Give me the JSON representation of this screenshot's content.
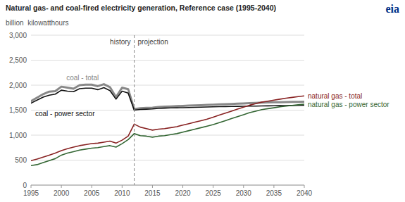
{
  "chart_data": {
    "type": "line",
    "title": "Natural gas- and coal-fired electricity generation, Reference case (1995-2040)",
    "y_label": "billion  kilowatthours",
    "xlim": [
      1995,
      2040
    ],
    "xticks": [
      1995,
      2000,
      2005,
      2010,
      2015,
      2020,
      2025,
      2030,
      2035,
      2040
    ],
    "ylim": [
      0,
      3000
    ],
    "yticks": [
      0,
      500,
      {
        "value": 1000,
        "label": "1,000"
      },
      {
        "value": 1500,
        "label": "1,500"
      },
      {
        "value": 2000,
        "label": "2,000"
      },
      {
        "value": 2500,
        "label": "2,500"
      },
      {
        "value": 3000,
        "label": "3,000"
      }
    ],
    "grid": true,
    "divider": {
      "x": 2012,
      "labels": [
        "history",
        "projection"
      ]
    },
    "logo": {
      "text": "eia",
      "color": "#003087"
    },
    "series": [
      {
        "name": "coal - total",
        "color": "#888888",
        "x": [
          1995,
          1996,
          1997,
          1998,
          1999,
          2000,
          2001,
          2002,
          2003,
          2004,
          2005,
          2006,
          2007,
          2008,
          2009,
          2010,
          2011,
          2012
        ],
        "values": [
          1680,
          1750,
          1820,
          1870,
          1880,
          1970,
          1950,
          1930,
          2000,
          2010,
          2010,
          1980,
          2020,
          1960,
          1760,
          1950,
          1920,
          1520
        ]
      },
      {
        "color": "#888888",
        "x": [
          2012,
          2013,
          2014,
          2015,
          2016,
          2017,
          2018,
          2019,
          2020,
          2021,
          2022,
          2023,
          2024,
          2025,
          2026,
          2027,
          2028,
          2029,
          2030,
          2031,
          2032,
          2033,
          2034,
          2035,
          2036,
          2037,
          2038,
          2039,
          2040
        ],
        "values": [
          1520,
          1540,
          1545,
          1550,
          1565,
          1570,
          1575,
          1580,
          1585,
          1590,
          1595,
          1600,
          1605,
          1610,
          1615,
          1620,
          1625,
          1630,
          1635,
          1640,
          1645,
          1650,
          1655,
          1658,
          1660,
          1662,
          1664,
          1666,
          1668
        ]
      },
      {
        "name": "coal - power sector",
        "color": "#111111",
        "x": [
          1995,
          1996,
          1997,
          1998,
          1999,
          2000,
          2001,
          2002,
          2003,
          2004,
          2005,
          2006,
          2007,
          2008,
          2009,
          2010,
          2011,
          2012
        ],
        "values": [
          1640,
          1700,
          1760,
          1800,
          1820,
          1900,
          1880,
          1870,
          1930,
          1940,
          1940,
          1910,
          1950,
          1890,
          1720,
          1880,
          1840,
          1500
        ]
      },
      {
        "color": "#111111",
        "x": [
          2012,
          2013,
          2014,
          2015,
          2016,
          2017,
          2018,
          2019,
          2020,
          2021,
          2022,
          2023,
          2024,
          2025,
          2026,
          2027,
          2028,
          2029,
          2030,
          2031,
          2032,
          2033,
          2034,
          2035,
          2036,
          2037,
          2038,
          2039,
          2040
        ],
        "values": [
          1500,
          1515,
          1520,
          1525,
          1535,
          1540,
          1545,
          1548,
          1550,
          1553,
          1556,
          1560,
          1563,
          1566,
          1570,
          1572,
          1574,
          1576,
          1578,
          1580,
          1582,
          1584,
          1586,
          1588,
          1590,
          1592,
          1594,
          1596,
          1598
        ]
      },
      {
        "name": "natural gas - total",
        "color": "#882222",
        "x": [
          1995,
          1996,
          1997,
          1998,
          1999,
          2000,
          2001,
          2002,
          2003,
          2004,
          2005,
          2006,
          2007,
          2008,
          2009,
          2010,
          2011,
          2012
        ],
        "values": [
          490,
          520,
          560,
          600,
          640,
          690,
          730,
          760,
          790,
          810,
          830,
          840,
          860,
          880,
          840,
          900,
          980,
          1220
        ]
      },
      {
        "color": "#882222",
        "x": [
          2012,
          2013,
          2014,
          2015,
          2016,
          2017,
          2018,
          2019,
          2020,
          2021,
          2022,
          2023,
          2024,
          2025,
          2026,
          2027,
          2028,
          2029,
          2030,
          2031,
          2032,
          2033,
          2034,
          2035,
          2036,
          2037,
          2038,
          2039,
          2040
        ],
        "values": [
          1220,
          1160,
          1130,
          1100,
          1120,
          1130,
          1150,
          1170,
          1200,
          1230,
          1260,
          1290,
          1320,
          1360,
          1400,
          1440,
          1480,
          1520,
          1560,
          1600,
          1630,
          1660,
          1680,
          1700,
          1720,
          1740,
          1755,
          1770,
          1785
        ]
      },
      {
        "name": "natural gas - power sector",
        "color": "#336633",
        "x": [
          1995,
          1996,
          1997,
          1998,
          1999,
          2000,
          2001,
          2002,
          2003,
          2004,
          2005,
          2006,
          2007,
          2008,
          2009,
          2010,
          2011,
          2012
        ],
        "values": [
          390,
          410,
          450,
          490,
          530,
          600,
          640,
          670,
          700,
          720,
          740,
          750,
          770,
          790,
          760,
          830,
          910,
          1030
        ]
      },
      {
        "color": "#336633",
        "x": [
          2012,
          2013,
          2014,
          2015,
          2016,
          2017,
          2018,
          2019,
          2020,
          2021,
          2022,
          2023,
          2024,
          2025,
          2026,
          2027,
          2028,
          2029,
          2030,
          2031,
          2032,
          2033,
          2034,
          2035,
          2036,
          2037,
          2038,
          2039,
          2040
        ],
        "values": [
          1030,
          990,
          980,
          960,
          980,
          990,
          1010,
          1030,
          1060,
          1090,
          1120,
          1150,
          1180,
          1210,
          1250,
          1290,
          1330,
          1370,
          1410,
          1450,
          1480,
          1510,
          1530,
          1548,
          1566,
          1582,
          1595,
          1608,
          1620
        ]
      }
    ]
  }
}
